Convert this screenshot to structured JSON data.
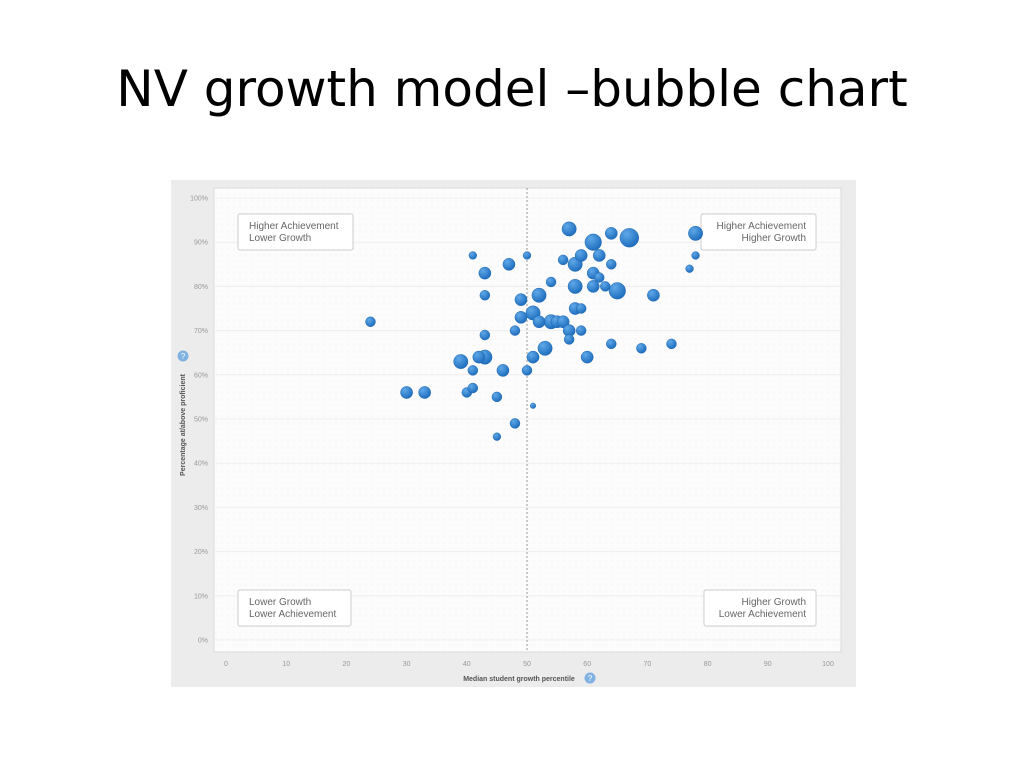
{
  "slide": {
    "title": "NV growth model –bubble chart"
  },
  "help_icon": {
    "glyph": "?",
    "color": "#7fb2e0"
  },
  "colors": {
    "bubble": "#1f6fbf",
    "bubble_highlight": "#5fa8e8",
    "plot_bg": "#fcfcfc",
    "frame_bg": "#ececec"
  },
  "chart_data": {
    "type": "scatter",
    "title": "",
    "xlabel": "Median student growth percentile",
    "ylabel": "Percentage at/above proficient",
    "xlim": [
      0,
      100
    ],
    "ylim": [
      0,
      100
    ],
    "xticks": [
      "0",
      "10",
      "20",
      "30",
      "40",
      "50",
      "60",
      "70",
      "80",
      "90",
      "100"
    ],
    "yticks": [
      "0%",
      "10%",
      "20%",
      "30%",
      "40%",
      "50%",
      "60%",
      "70%",
      "80%",
      "90%",
      "100%"
    ],
    "reference_line_x": 50,
    "grid": true,
    "legend": "none",
    "quadrant_labels": {
      "top_left": [
        "Higher Achievement",
        "Lower Growth"
      ],
      "top_right": [
        "Higher Achievement",
        "Higher Growth"
      ],
      "bottom_left": [
        "Lower Growth",
        "Lower Achievement"
      ],
      "bottom_right": [
        "Higher Growth",
        "Lower Achievement"
      ]
    },
    "points": [
      {
        "x": 24,
        "y": 72,
        "size": 2
      },
      {
        "x": 30,
        "y": 56,
        "size": 2.5
      },
      {
        "x": 33,
        "y": 56,
        "size": 2.5
      },
      {
        "x": 39,
        "y": 63,
        "size": 3
      },
      {
        "x": 40,
        "y": 56,
        "size": 2
      },
      {
        "x": 41,
        "y": 57,
        "size": 2
      },
      {
        "x": 41,
        "y": 61,
        "size": 2
      },
      {
        "x": 41,
        "y": 87,
        "size": 1.5
      },
      {
        "x": 42,
        "y": 64,
        "size": 2.5
      },
      {
        "x": 43,
        "y": 64,
        "size": 3
      },
      {
        "x": 43,
        "y": 69,
        "size": 2
      },
      {
        "x": 43,
        "y": 78,
        "size": 2
      },
      {
        "x": 43,
        "y": 83,
        "size": 2.5
      },
      {
        "x": 45,
        "y": 46,
        "size": 1.5
      },
      {
        "x": 45,
        "y": 55,
        "size": 2
      },
      {
        "x": 46,
        "y": 61,
        "size": 2.5
      },
      {
        "x": 47,
        "y": 85,
        "size": 2.5
      },
      {
        "x": 48,
        "y": 49,
        "size": 2
      },
      {
        "x": 48,
        "y": 70,
        "size": 2
      },
      {
        "x": 49,
        "y": 73,
        "size": 2.5
      },
      {
        "x": 49,
        "y": 77,
        "size": 2.5
      },
      {
        "x": 50,
        "y": 61,
        "size": 2
      },
      {
        "x": 50,
        "y": 87,
        "size": 1.5
      },
      {
        "x": 51,
        "y": 53,
        "size": 1
      },
      {
        "x": 51,
        "y": 64,
        "size": 2.5
      },
      {
        "x": 51,
        "y": 74,
        "size": 3
      },
      {
        "x": 52,
        "y": 72,
        "size": 2.5
      },
      {
        "x": 52,
        "y": 78,
        "size": 3
      },
      {
        "x": 53,
        "y": 66,
        "size": 3
      },
      {
        "x": 54,
        "y": 72,
        "size": 3
      },
      {
        "x": 54,
        "y": 81,
        "size": 2
      },
      {
        "x": 55,
        "y": 72,
        "size": 2.5
      },
      {
        "x": 56,
        "y": 72,
        "size": 2.5
      },
      {
        "x": 56,
        "y": 86,
        "size": 2
      },
      {
        "x": 57,
        "y": 68,
        "size": 2
      },
      {
        "x": 57,
        "y": 70,
        "size": 2.5
      },
      {
        "x": 57,
        "y": 93,
        "size": 3
      },
      {
        "x": 58,
        "y": 75,
        "size": 2.5
      },
      {
        "x": 58,
        "y": 80,
        "size": 3
      },
      {
        "x": 58,
        "y": 85,
        "size": 3
      },
      {
        "x": 59,
        "y": 70,
        "size": 2
      },
      {
        "x": 59,
        "y": 75,
        "size": 2
      },
      {
        "x": 59,
        "y": 87,
        "size": 2.5
      },
      {
        "x": 60,
        "y": 64,
        "size": 2.5
      },
      {
        "x": 61,
        "y": 80,
        "size": 2.5
      },
      {
        "x": 61,
        "y": 83,
        "size": 2.5
      },
      {
        "x": 61,
        "y": 90,
        "size": 3.5
      },
      {
        "x": 62,
        "y": 82,
        "size": 2
      },
      {
        "x": 62,
        "y": 87,
        "size": 2.5
      },
      {
        "x": 63,
        "y": 80,
        "size": 2
      },
      {
        "x": 64,
        "y": 67,
        "size": 2
      },
      {
        "x": 64,
        "y": 85,
        "size": 2
      },
      {
        "x": 64,
        "y": 92,
        "size": 2.5
      },
      {
        "x": 65,
        "y": 79,
        "size": 3.5
      },
      {
        "x": 67,
        "y": 91,
        "size": 4
      },
      {
        "x": 69,
        "y": 66,
        "size": 2
      },
      {
        "x": 71,
        "y": 78,
        "size": 2.5
      },
      {
        "x": 74,
        "y": 67,
        "size": 2
      },
      {
        "x": 77,
        "y": 84,
        "size": 1.5
      },
      {
        "x": 78,
        "y": 87,
        "size": 1.5
      },
      {
        "x": 78,
        "y": 92,
        "size": 3
      }
    ]
  }
}
